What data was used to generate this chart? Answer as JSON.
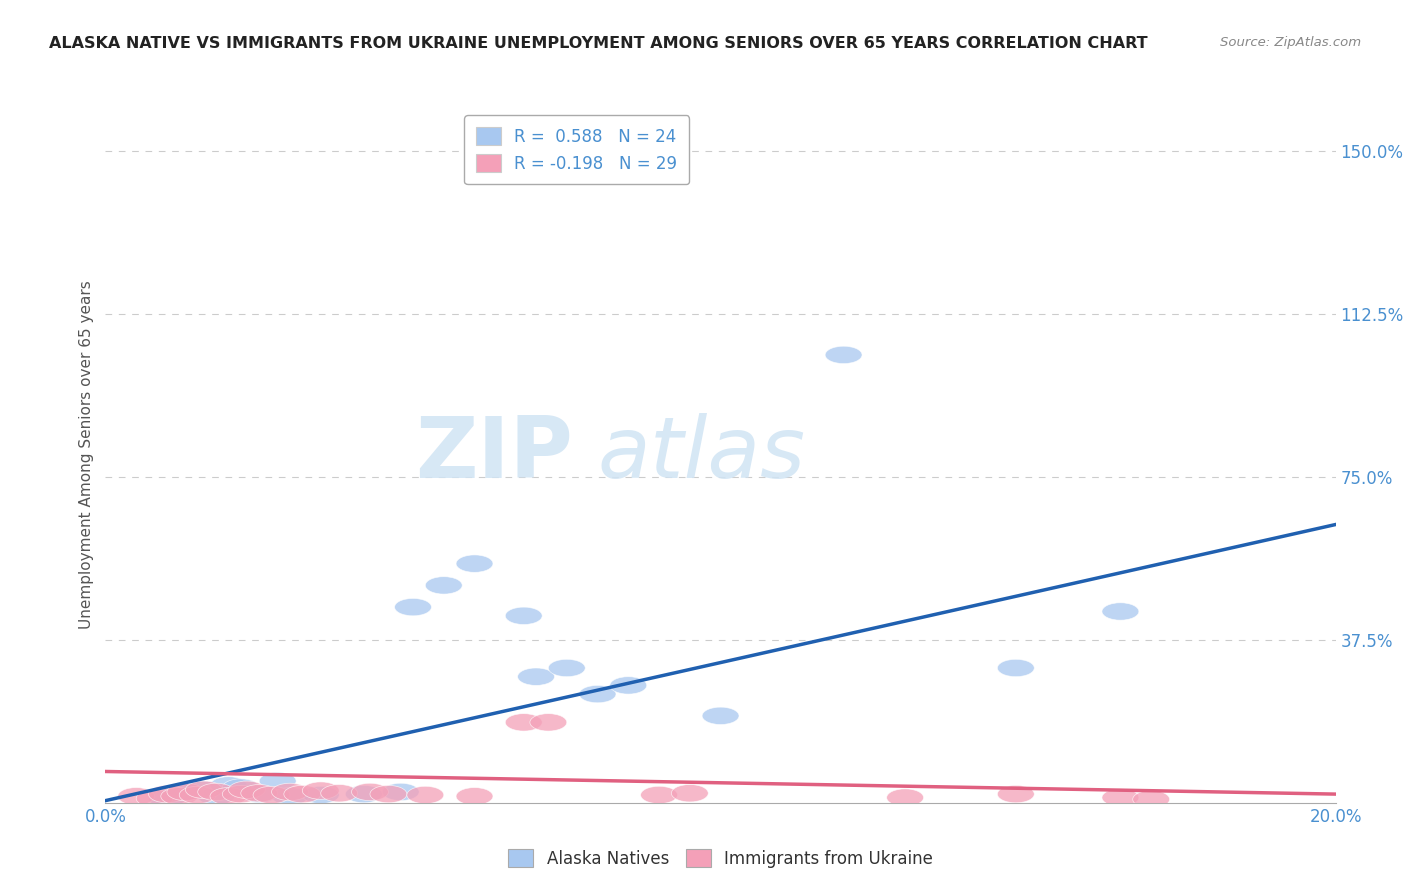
{
  "title": "ALASKA NATIVE VS IMMIGRANTS FROM UKRAINE UNEMPLOYMENT AMONG SENIORS OVER 65 YEARS CORRELATION CHART",
  "source": "Source: ZipAtlas.com",
  "ylabel": "Unemployment Among Seniors over 65 years",
  "ylim": [
    0,
    1.6
  ],
  "xlim": [
    0,
    0.2
  ],
  "ytick_vals": [
    0.375,
    0.75,
    1.125,
    1.5
  ],
  "ytick_labels": [
    "37.5%",
    "75.0%",
    "112.5%",
    "150.0%"
  ],
  "legend_entries": [
    {
      "label": "R =  0.588   N = 24",
      "color": "#a8c8f0"
    },
    {
      "label": "R = -0.198   N = 29",
      "color": "#f4a0b0"
    }
  ],
  "blue_scatter": [
    [
      0.01,
      0.01
    ],
    [
      0.013,
      0.025
    ],
    [
      0.016,
      0.03
    ],
    [
      0.018,
      0.015
    ],
    [
      0.02,
      0.04
    ],
    [
      0.022,
      0.035
    ],
    [
      0.025,
      0.02
    ],
    [
      0.028,
      0.05
    ],
    [
      0.05,
      0.45
    ],
    [
      0.055,
      0.5
    ],
    [
      0.06,
      0.55
    ],
    [
      0.068,
      0.43
    ],
    [
      0.07,
      0.29
    ],
    [
      0.075,
      0.31
    ],
    [
      0.08,
      0.25
    ],
    [
      0.085,
      0.27
    ],
    [
      0.1,
      0.2
    ],
    [
      0.12,
      1.03
    ],
    [
      0.148,
      0.31
    ],
    [
      0.165,
      0.44
    ],
    [
      0.042,
      0.02
    ],
    [
      0.048,
      0.025
    ],
    [
      0.03,
      0.015
    ],
    [
      0.035,
      0.018
    ]
  ],
  "pink_scatter": [
    [
      0.005,
      0.015
    ],
    [
      0.008,
      0.01
    ],
    [
      0.01,
      0.02
    ],
    [
      0.012,
      0.015
    ],
    [
      0.013,
      0.025
    ],
    [
      0.015,
      0.018
    ],
    [
      0.016,
      0.03
    ],
    [
      0.018,
      0.025
    ],
    [
      0.02,
      0.015
    ],
    [
      0.022,
      0.02
    ],
    [
      0.023,
      0.03
    ],
    [
      0.025,
      0.022
    ],
    [
      0.027,
      0.018
    ],
    [
      0.03,
      0.025
    ],
    [
      0.032,
      0.02
    ],
    [
      0.035,
      0.028
    ],
    [
      0.038,
      0.022
    ],
    [
      0.068,
      0.185
    ],
    [
      0.072,
      0.185
    ],
    [
      0.09,
      0.018
    ],
    [
      0.095,
      0.022
    ],
    [
      0.13,
      0.012
    ],
    [
      0.148,
      0.02
    ],
    [
      0.165,
      0.012
    ],
    [
      0.17,
      0.008
    ],
    [
      0.043,
      0.025
    ],
    [
      0.046,
      0.02
    ],
    [
      0.052,
      0.018
    ],
    [
      0.06,
      0.015
    ]
  ],
  "blue_line_x": [
    0.0,
    0.2
  ],
  "blue_line_y": [
    0.005,
    0.64
  ],
  "pink_line_x": [
    0.0,
    0.2
  ],
  "pink_line_y": [
    0.072,
    0.02
  ],
  "blue_color": "#a8c8f0",
  "pink_color": "#f4a0b8",
  "blue_line_color": "#2060b0",
  "pink_line_color": "#e06080",
  "background_color": "#ffffff",
  "grid_color": "#cccccc",
  "title_color": "#222222",
  "source_color": "#888888",
  "axis_color": "#4a90d0",
  "ylabel_color": "#555555"
}
